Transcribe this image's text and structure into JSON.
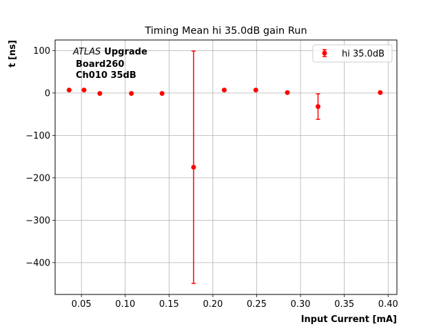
{
  "chart_data": {
    "type": "scatter",
    "title": "Timing Mean hi 35.0dB gain Run",
    "xlabel": "Input Current [mA]",
    "ylabel": "t [ns]",
    "xlim": [
      0.02,
      0.41
    ],
    "ylim": [
      -475,
      125
    ],
    "xticks": [
      0.05,
      0.1,
      0.15,
      0.2,
      0.25,
      0.3,
      0.35,
      0.4
    ],
    "xtick_labels": [
      "0.05",
      "0.10",
      "0.15",
      "0.20",
      "0.25",
      "0.30",
      "0.35",
      "0.40"
    ],
    "yticks": [
      100,
      0,
      -100,
      -200,
      -300,
      -400
    ],
    "ytick_labels": [
      "100",
      "0",
      "−100",
      "−200",
      "−300",
      "−400"
    ],
    "grid": true,
    "legend_position": "top-right",
    "annotation": {
      "atlas": "ATLAS",
      "upgrade": "Upgrade",
      "line2": "Board260",
      "line3": "Ch010 35dB"
    },
    "series": [
      {
        "name": "hi 35.0dB",
        "color": "#ff0000",
        "x": [
          0.036,
          0.053,
          0.071,
          0.107,
          0.142,
          0.178,
          0.213,
          0.249,
          0.285,
          0.32,
          0.391
        ],
        "y": [
          7,
          7,
          -1,
          -1,
          -1,
          -175,
          7,
          7,
          1,
          -32,
          1
        ],
        "yerr": [
          0,
          0,
          0,
          0,
          0,
          274,
          0,
          0,
          0,
          30,
          0
        ]
      }
    ]
  }
}
